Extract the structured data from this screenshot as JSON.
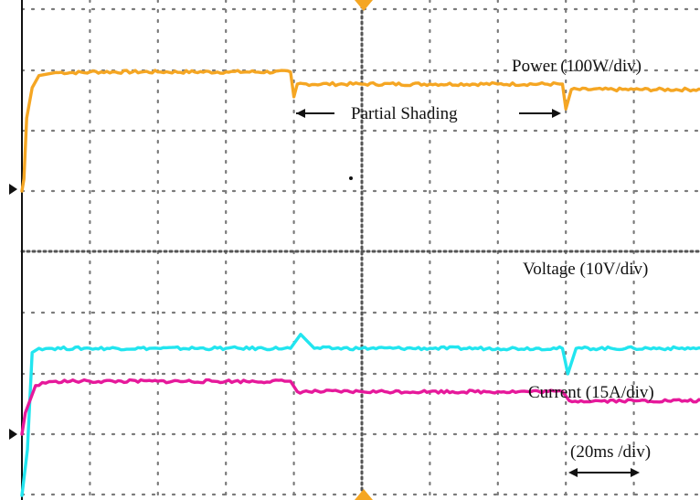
{
  "chart_data": {
    "type": "line",
    "title": "",
    "xlabel": "",
    "ylabel": "",
    "time_div_label": "(20ms /div)",
    "annotation": "Partial Shading",
    "divisions": {
      "x": 10,
      "y": 8
    },
    "series": [
      {
        "name": "Power (100W/div)",
        "color": "#f5a623",
        "x": [
          0,
          0.03,
          0.07,
          0.15,
          0.25,
          0.5,
          1.0,
          2.0,
          3.0,
          3.95,
          4.0,
          4.05,
          5.0,
          6.0,
          7.0,
          7.95,
          8.0,
          8.08,
          9.0,
          10.0
        ],
        "y": [
          0,
          0.2,
          1.2,
          1.7,
          1.9,
          1.95,
          1.96,
          1.96,
          1.96,
          1.96,
          1.55,
          1.76,
          1.76,
          1.76,
          1.76,
          1.76,
          1.35,
          1.67,
          1.67,
          1.67
        ]
      },
      {
        "name": "Voltage (10V/div)",
        "color": "#22e5ef",
        "x": [
          0,
          0.08,
          0.15,
          0.25,
          0.4,
          1.0,
          2.0,
          3.0,
          3.95,
          4.1,
          4.3,
          5.0,
          6.0,
          7.0,
          7.95,
          8.03,
          8.15,
          9.0,
          10.0
        ],
        "y": [
          0,
          0.75,
          2.35,
          2.42,
          2.42,
          2.42,
          2.42,
          2.42,
          2.42,
          2.65,
          2.42,
          2.42,
          2.42,
          2.42,
          2.42,
          2.0,
          2.42,
          2.42,
          2.42
        ]
      },
      {
        "name": "Current (15A/div)",
        "color": "#e6199b",
        "x": [
          0,
          0.05,
          0.2,
          0.3,
          0.5,
          1.0,
          2.0,
          3.0,
          3.95,
          4.05,
          5.0,
          6.0,
          7.0,
          7.95,
          8.05,
          9.0,
          10.0
        ],
        "y": [
          0,
          0.35,
          0.8,
          0.85,
          0.87,
          0.87,
          0.87,
          0.87,
          0.87,
          0.7,
          0.7,
          0.7,
          0.7,
          0.7,
          0.55,
          0.55,
          0.55
        ]
      }
    ]
  }
}
